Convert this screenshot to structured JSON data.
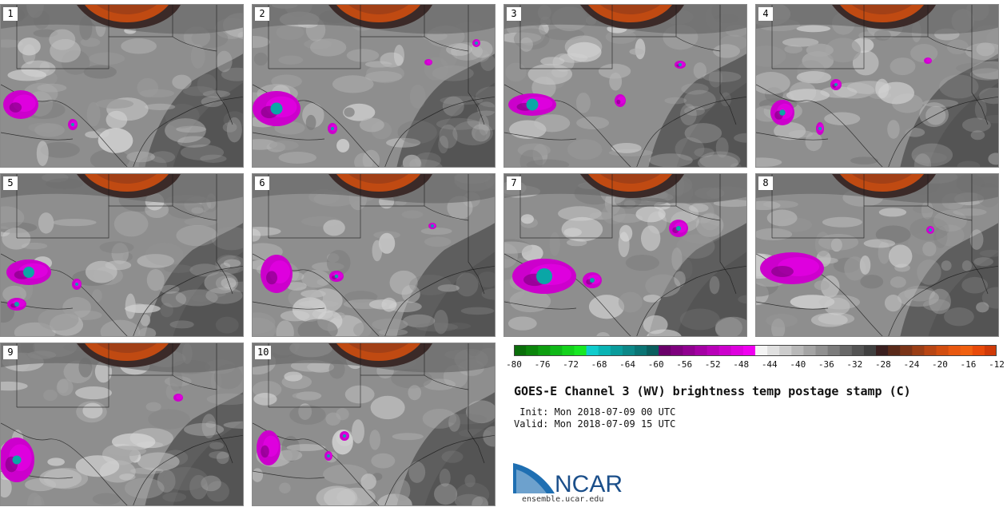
{
  "panels": [
    {
      "label": "1"
    },
    {
      "label": "2"
    },
    {
      "label": "3"
    },
    {
      "label": "4"
    },
    {
      "label": "5"
    },
    {
      "label": "6"
    },
    {
      "label": "7"
    },
    {
      "label": "8"
    },
    {
      "label": "9"
    },
    {
      "label": "10"
    }
  ],
  "colorbar": {
    "ticks": [
      "-80",
      "-76",
      "-72",
      "-68",
      "-64",
      "-60",
      "-56",
      "-52",
      "-48",
      "-44",
      "-40",
      "-36",
      "-32",
      "-28",
      "-24",
      "-20",
      "-16",
      "-12"
    ],
    "colors": [
      "#0a6e0a",
      "#0c850c",
      "#0e9e10",
      "#10b818",
      "#14d21c",
      "#18e824",
      "#10cccc",
      "#0ab4b4",
      "#0a9c9c",
      "#0c8888",
      "#0a7474",
      "#0a5e5e",
      "#6a006a",
      "#7e007e",
      "#900090",
      "#a400a4",
      "#b800b8",
      "#cc00cc",
      "#de00de",
      "#f000f0",
      "#f4f4f4",
      "#e0e0e0",
      "#cccccc",
      "#b8b8b8",
      "#a4a4a4",
      "#909090",
      "#7c7c7c",
      "#686868",
      "#545454",
      "#404040",
      "#3a1f1f",
      "#5a2a1a",
      "#7a3418",
      "#9a3e16",
      "#b84614",
      "#d24e10",
      "#e85810",
      "#f06010",
      "#e84a0a",
      "#d03a08"
    ]
  },
  "title": "GOES-E Channel 3 (WV) brightness temp postage stamp (C)",
  "init": " Init: Mon 2018-07-09 00 UTC",
  "valid": "Valid: Mon 2018-07-09 15 UTC",
  "logo": {
    "text": "NCAR",
    "url": "ensemble.ucar.edu",
    "colors": {
      "blue": "#1f6fb2",
      "text": "#1b4f8a"
    }
  }
}
